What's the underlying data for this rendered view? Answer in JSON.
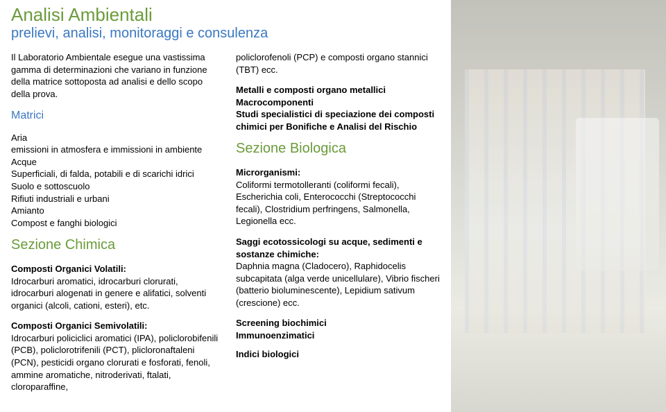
{
  "title": "Analisi Ambientali",
  "subtitle": "prelievi, analisi, monitoraggi e consulenza",
  "col1": {
    "intro": "Il Laboratorio Ambientale esegue una vastissima gamma di determinazioni che variano in funzione della matrice sottoposta ad analisi e dello scopo della prova.",
    "matrici_head": "Matrici",
    "aria_l1": "Aria",
    "aria_l2": "emissioni in atmosfera e immissioni in ambiente",
    "acque_l1": "Acque",
    "acque_l2": "Superficiali, di falda, potabili e di scarichi idrici",
    "suolo": "Suolo e sottoscuolo",
    "rifiuti": "Rifiuti industriali e urbani",
    "amianto": "Amianto",
    "compost": "Compost e fanghi biologici",
    "sez_chimica": "Sezione Chimica",
    "cov_head": "Composti Organici Volatili:",
    "cov_body": "Idrocarburi aromatici, idrocarburi clorurati, idrocarburi alogenati in genere e alifatici, solventi organici (alcoli, cationi, esteri), etc.",
    "cos_head": "Composti Organici Semivolatili:",
    "cos_body": "Idrocarburi policiclici aromatici (IPA), policlorobifenili (PCB), policlorotrifenili (PCT), plicloronaftaleni (PCN), pesticidi organo clorurati e fosforati, fenoli, ammine aromatiche, nitroderivati, ftalati, cloroparaffine,"
  },
  "col2": {
    "cont": "policlorofenoli (PCP) e composti organo stannici (TBT) ecc.",
    "met1": "Metalli e composti organo metallici",
    "met2": "Macrocomponenti",
    "met3": "Studi specialistici di speciazione dei composti chimici per Bonifiche e Analisi del Rischio",
    "sez_bio": "Sezione Biologica",
    "micro_head": "Microrganismi:",
    "micro_body": "Coliformi termotolleranti (coliformi fecali), Escherichia coli, Enterococchi (Streptococchi fecali), Clostridium perfringens, Salmonella, Legionella ecc.",
    "saggi_head": "Saggi ecotossicologi su acque, sedimenti e sostanze chimiche:",
    "saggi_body": "Daphnia magna (Cladocero), Raphidocelis subcapitata (alga verde unicellulare), Vibrio fischeri (batterio bioluminescente), Lepidium sativum (crescione) ecc.",
    "screen1": "Screening biochimici",
    "screen2": "Immunoenzimatici",
    "indici": "Indici biologici"
  },
  "colors": {
    "green": "#6a9b3a",
    "blue": "#3a78c0",
    "text": "#000000",
    "bg": "#ffffff"
  }
}
